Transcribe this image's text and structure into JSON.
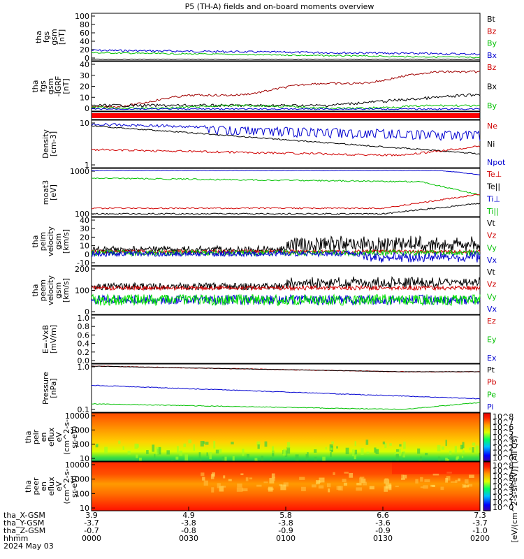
{
  "title": "P5 (TH-A) fields and on-board moments overview",
  "chart_data": {
    "type": "line",
    "date": "2024 May 03",
    "x_time_ticks": [
      "0000",
      "0030",
      "0100",
      "0130",
      "0200"
    ],
    "footer": {
      "rows": [
        {
          "label": "tha_X-GSM",
          "values": [
            "3.9",
            "4.9",
            "5.8",
            "6.6",
            "7.3"
          ]
        },
        {
          "label": "tha_Y-GSM",
          "values": [
            "-3.7",
            "-3.8",
            "-3.8",
            "-3.6",
            "-3.7"
          ]
        },
        {
          "label": "tha_Z-GSM",
          "values": [
            "-0.7",
            "-0.8",
            "-0.9",
            "-0.9",
            "-1.0"
          ]
        },
        {
          "label": "hhmm",
          "values": [
            "0000",
            "0030",
            "0100",
            "0130",
            "0200"
          ]
        }
      ],
      "date_label": "2024 May 03"
    },
    "panels": [
      {
        "id": "p1",
        "ylabel": [
          "tha",
          "fgs",
          "gsm",
          "[nT]"
        ],
        "yticks": [
          "100",
          "80",
          "60",
          "40",
          "20",
          "0"
        ],
        "legend": [
          {
            "text": "Bt",
            "color": "#000000"
          },
          {
            "text": "Bz",
            "color": "#d00000"
          },
          {
            "text": "By",
            "color": "#00c000"
          },
          {
            "text": "Bx",
            "color": "#0000d0"
          }
        ]
      },
      {
        "id": "p2",
        "ylabel": [
          "tha",
          "fgs",
          "gsm",
          "-IGRF",
          "[nT]"
        ],
        "yticks": [
          "40",
          "30",
          "20",
          "10",
          "0"
        ],
        "legend": [
          {
            "text": "Bz",
            "color": "#d00000"
          },
          {
            "text": "Bx",
            "color": "#000000"
          },
          {
            "text": "By",
            "color": "#00c000"
          }
        ]
      },
      {
        "id": "p3",
        "ylabel": [],
        "yticks": [],
        "legend": []
      },
      {
        "id": "p4",
        "ylabel": [
          "Density",
          "[cm-3]"
        ],
        "yticks": [
          "10",
          "1"
        ],
        "legend": [
          {
            "text": "Ne",
            "color": "#d00000"
          },
          {
            "text": "Ni",
            "color": "#000000"
          },
          {
            "text": "Npot",
            "color": "#0000d0"
          }
        ]
      },
      {
        "id": "p5",
        "ylabel": [
          "moat3",
          "[eV]"
        ],
        "yticks": [
          "1000",
          "100"
        ],
        "legend": [
          {
            "text": "Te⊥",
            "color": "#d00000"
          },
          {
            "text": "Te||",
            "color": "#000000"
          },
          {
            "text": "Ti⊥",
            "color": "#0000d0"
          },
          {
            "text": "Ti||",
            "color": "#00c000"
          }
        ]
      },
      {
        "id": "p6",
        "ylabel": [
          "tha",
          "peim",
          "velocity",
          "gsm",
          "[km/s]"
        ],
        "yticks": [
          "40",
          "30",
          "20",
          "10",
          "0",
          "-10"
        ],
        "legend": [
          {
            "text": "Vt",
            "color": "#000000"
          },
          {
            "text": "Vz",
            "color": "#d00000"
          },
          {
            "text": "Vy",
            "color": "#00c000"
          },
          {
            "text": "Vx",
            "color": "#0000d0"
          }
        ]
      },
      {
        "id": "p7",
        "ylabel": [
          "tha",
          "peem",
          "velocity",
          "gsm",
          "[km/s]"
        ],
        "yticks": [
          "200",
          "100",
          "0"
        ],
        "legend": [
          {
            "text": "Vt",
            "color": "#000000"
          },
          {
            "text": "Vz",
            "color": "#d00000"
          },
          {
            "text": "Vy",
            "color": "#00c000"
          },
          {
            "text": "Vx",
            "color": "#0000d0"
          }
        ]
      },
      {
        "id": "p8",
        "ylabel": [
          "E=-VxB",
          "[mV/m]"
        ],
        "yticks": [
          "1.0",
          "0.8",
          "0.6",
          "0.4",
          "0.2",
          "0.0"
        ],
        "legend": [
          {
            "text": "Ez",
            "color": "#d00000"
          },
          {
            "text": "Ey",
            "color": "#00c000"
          },
          {
            "text": "Ex",
            "color": "#0000d0"
          }
        ]
      },
      {
        "id": "p9",
        "ylabel": [
          "Pressure",
          "[nPa]"
        ],
        "yticks": [
          "1.0",
          "0.1"
        ],
        "legend": [
          {
            "text": "Pt",
            "color": "#000000"
          },
          {
            "text": "Pb",
            "color": "#d00000"
          },
          {
            "text": "Pe",
            "color": "#00c000"
          },
          {
            "text": "Pi",
            "color": "#0000d0"
          }
        ]
      },
      {
        "id": "p10",
        "ylabel": [
          "tha",
          "peir",
          "en",
          "eflux",
          "eV",
          "(cm^2-s-",
          "sr-eV)"
        ],
        "yticks": [
          "10000",
          "1000",
          "100",
          "10"
        ],
        "legend": []
      },
      {
        "id": "p11",
        "ylabel": [
          "tha",
          "peer",
          "en",
          "eflux",
          "eV",
          "(cm^2-s-",
          "sr-eV)"
        ],
        "yticks": [
          "10000",
          "1000",
          "100",
          "10"
        ],
        "legend": []
      }
    ],
    "colorbar_label": "[eV/(cm^2-s-sr-eV)] (All Qs)",
    "colorbar1_ticks": [
      "10^8",
      "10^7",
      "10^6",
      "10^5",
      "10^4",
      "10^3",
      "10^2",
      "10^1",
      "10^0"
    ],
    "colorbar2_ticks": [
      "10^8",
      "10^7",
      "10^6",
      "10^5",
      "10^4",
      "10^3",
      "10^2",
      "10^1",
      "10^0"
    ]
  }
}
